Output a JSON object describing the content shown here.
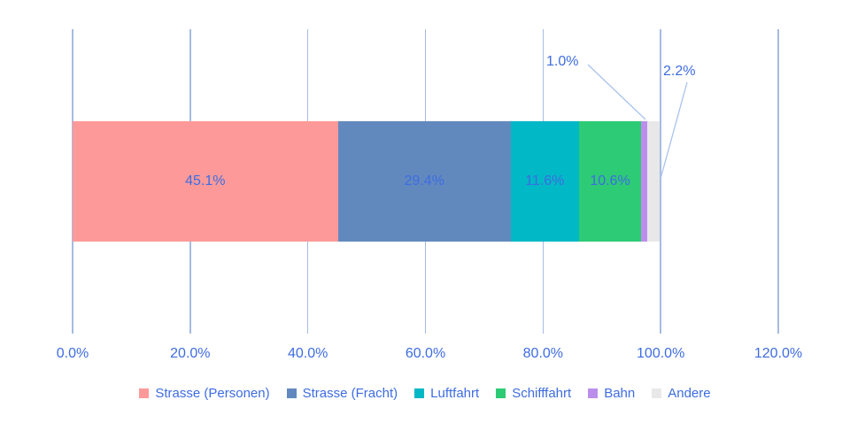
{
  "chart_data": {
    "type": "bar",
    "orientation": "horizontal",
    "stacked": true,
    "title": "",
    "categories": [
      "Strasse (Personen)",
      "Strasse (Fracht)",
      "Luftfahrt",
      "Schifffahrt",
      "Bahn",
      "Andere"
    ],
    "values": [
      45.1,
      29.4,
      11.6,
      10.6,
      1.0,
      2.2
    ],
    "data_labels": [
      "45.1%",
      "29.4%",
      "11.6%",
      "10.6%",
      "1.0%",
      "2.2%"
    ],
    "label_inside": [
      true,
      true,
      true,
      true,
      false,
      false
    ],
    "colors": [
      "#fd9a99",
      "#6289be",
      "#00b8c6",
      "#2dcb75",
      "#bc8eec",
      "#e9e8e9"
    ],
    "xlim": [
      0,
      120
    ],
    "x_tick_values": [
      0,
      20,
      40,
      60,
      80,
      100,
      120
    ],
    "x_tick_labels": [
      "0.0%",
      "20.0%",
      "40.0%",
      "60.0%",
      "80.0%",
      "100.0%",
      "120.0%"
    ],
    "grid": "vertical",
    "legend_position": "bottom"
  },
  "callouts": [
    {
      "label": "1.0%",
      "series": "Bahn"
    },
    {
      "label": "2.2%",
      "series": "Andere"
    }
  ],
  "colors": {
    "background": "#ffffff",
    "text": "#3d6ce2",
    "gridline": "#a7bbe2",
    "leader_line": "#a9c2ee"
  }
}
